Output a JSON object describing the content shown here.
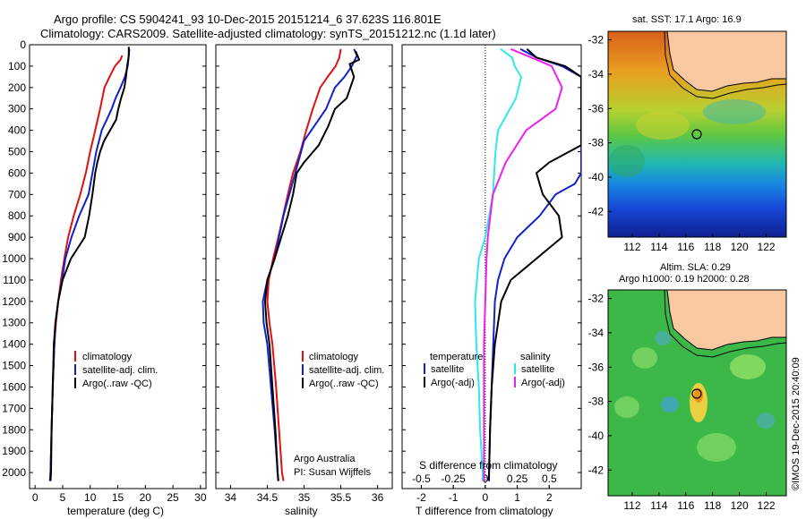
{
  "title_line1": "Argo profile: CS 5904241_93 10-Dec-2015 20151214_6 37.623S 116.801E",
  "title_line2": "Climatology: CARS2009. Satellite-adjusted climatology: synTS_20151212.nc (1.1d later)",
  "colors": {
    "climatology": "#e01010",
    "satellite": "#1020d0",
    "argo": "#000000",
    "cyan": "#30e8e8",
    "magenta": "#ee20ee"
  },
  "footer_left": "Argo Australia",
  "footer_pi": "PI: Susan Wijffels",
  "stamp": "©IMOS 19-Dec-2015 20:40:09",
  "chart_data": [
    {
      "type": "line",
      "xlabel": "temperature (deg C)",
      "xlim": [
        -1,
        31
      ],
      "ylim": [
        2075,
        0
      ],
      "xticks": [
        0,
        5,
        10,
        15,
        20,
        25,
        30
      ],
      "yticks": [
        0,
        100,
        200,
        300,
        400,
        500,
        600,
        700,
        800,
        900,
        1000,
        1100,
        1200,
        1300,
        1400,
        1500,
        1600,
        1700,
        1800,
        1900,
        2000
      ],
      "legend": [
        "climatology",
        "satellite-adj. clim.",
        "Argo(..raw -QC)"
      ],
      "series": [
        {
          "name": "climatology",
          "color": "#e01010",
          "points": [
            [
              15.8,
              50
            ],
            [
              15.5,
              70
            ],
            [
              14.5,
              100
            ],
            [
              13.5,
              150
            ],
            [
              12.6,
              200
            ],
            [
              11.8,
              300
            ],
            [
              10.9,
              400
            ],
            [
              10,
              500
            ],
            [
              9.2,
              600
            ],
            [
              8.2,
              700
            ],
            [
              7,
              800
            ],
            [
              6,
              900
            ],
            [
              5.3,
              1000
            ],
            [
              4.7,
              1100
            ],
            [
              4.2,
              1200
            ],
            [
              3.8,
              1300
            ],
            [
              3.5,
              1400
            ],
            [
              3.2,
              1600
            ],
            [
              3,
              1800
            ],
            [
              2.8,
              2000
            ],
            [
              2.7,
              2040
            ]
          ]
        },
        {
          "name": "satellite-adj. clim.",
          "color": "#1020d0",
          "points": [
            [
              17.1,
              20
            ],
            [
              17,
              50
            ],
            [
              16.8,
              100
            ],
            [
              16.3,
              150
            ],
            [
              15.5,
              200
            ],
            [
              14.6,
              250
            ],
            [
              13.9,
              300
            ],
            [
              13,
              350
            ],
            [
              12.1,
              400
            ],
            [
              11.1,
              500
            ],
            [
              10.4,
              600
            ],
            [
              9.7,
              700
            ],
            [
              8,
              800
            ],
            [
              6.6,
              900
            ],
            [
              5.5,
              1000
            ],
            [
              4.9,
              1100
            ],
            [
              4.2,
              1200
            ],
            [
              3.7,
              1300
            ],
            [
              3.5,
              1400
            ],
            [
              3.2,
              1600
            ],
            [
              3,
              1800
            ],
            [
              2.8,
              2000
            ],
            [
              2.7,
              2040
            ]
          ]
        },
        {
          "name": "Argo(..raw -QC)",
          "color": "#000000",
          "points": [
            [
              17,
              10
            ],
            [
              17,
              50
            ],
            [
              16.7,
              100
            ],
            [
              16.5,
              150
            ],
            [
              16.2,
              200
            ],
            [
              15.6,
              250
            ],
            [
              15.1,
              300
            ],
            [
              14.7,
              350
            ],
            [
              13.6,
              400
            ],
            [
              12.5,
              450
            ],
            [
              11.8,
              500
            ],
            [
              11.3,
              550
            ],
            [
              10.9,
              600
            ],
            [
              10.4,
              700
            ],
            [
              9.8,
              800
            ],
            [
              9,
              900
            ],
            [
              6.5,
              1000
            ],
            [
              5,
              1100
            ],
            [
              4.2,
              1200
            ],
            [
              3.7,
              1300
            ],
            [
              3.4,
              1400
            ],
            [
              3.2,
              1600
            ],
            [
              3,
              1800
            ],
            [
              2.9,
              2000
            ],
            [
              2.8,
              2040
            ]
          ]
        }
      ]
    },
    {
      "type": "line",
      "xlabel": "salinity",
      "xlim": [
        33.8,
        36.2
      ],
      "ylim": [
        2075,
        0
      ],
      "xticks": [
        34,
        34.5,
        35,
        35.5,
        36
      ],
      "legend": [
        "climatology",
        "satellite-adj. clim.",
        "Argo(..raw -QC)"
      ],
      "series": [
        {
          "name": "climatology",
          "color": "#e01010",
          "points": [
            [
              35.5,
              20
            ],
            [
              35.48,
              60
            ],
            [
              35.43,
              100
            ],
            [
              35.32,
              150
            ],
            [
              35.22,
              200
            ],
            [
              35.12,
              300
            ],
            [
              35.03,
              400
            ],
            [
              34.95,
              500
            ],
            [
              34.85,
              600
            ],
            [
              34.78,
              700
            ],
            [
              34.65,
              900
            ],
            [
              34.58,
              1000
            ],
            [
              34.52,
              1100
            ],
            [
              34.5,
              1200
            ],
            [
              34.53,
              1300
            ],
            [
              34.57,
              1400
            ],
            [
              34.62,
              1600
            ],
            [
              34.66,
              1800
            ],
            [
              34.7,
              2000
            ],
            [
              34.72,
              2040
            ]
          ]
        },
        {
          "name": "satellite-adj. clim.",
          "color": "#1020d0",
          "points": [
            [
              35.68,
              20
            ],
            [
              35.72,
              50
            ],
            [
              35.65,
              100
            ],
            [
              35.55,
              150
            ],
            [
              35.42,
              200
            ],
            [
              35.3,
              300
            ],
            [
              35.1,
              400
            ],
            [
              35,
              450
            ],
            [
              34.88,
              600
            ],
            [
              34.72,
              800
            ],
            [
              34.6,
              1000
            ],
            [
              34.5,
              1100
            ],
            [
              34.44,
              1200
            ],
            [
              34.45,
              1300
            ],
            [
              34.5,
              1400
            ],
            [
              34.55,
              1600
            ],
            [
              34.6,
              1800
            ],
            [
              34.64,
              2000
            ],
            [
              34.65,
              2040
            ]
          ]
        },
        {
          "name": "Argo(..raw -QC)",
          "color": "#000000",
          "points": [
            [
              35.7,
              30
            ],
            [
              35.75,
              70
            ],
            [
              35.62,
              90
            ],
            [
              35.68,
              150
            ],
            [
              35.58,
              250
            ],
            [
              35.42,
              300
            ],
            [
              35.33,
              380
            ],
            [
              35.2,
              470
            ],
            [
              35,
              550
            ],
            [
              34.9,
              600
            ],
            [
              34.85,
              700
            ],
            [
              34.78,
              800
            ],
            [
              34.6,
              1000
            ],
            [
              34.5,
              1100
            ],
            [
              34.47,
              1200
            ],
            [
              34.49,
              1300
            ],
            [
              34.53,
              1400
            ],
            [
              34.57,
              1600
            ],
            [
              34.61,
              1800
            ],
            [
              34.64,
              2000
            ],
            [
              34.65,
              2040
            ]
          ]
        }
      ]
    },
    {
      "type": "line",
      "xlabel": "T difference from climatology",
      "xlabel2": "S difference from climatology",
      "xlim": [
        -2.6,
        3
      ],
      "ylim": [
        2075,
        0
      ],
      "xticks": [
        -2,
        -1,
        0,
        1,
        2
      ],
      "xticks2": [
        -0.5,
        -0.25,
        0,
        0.25,
        0.5
      ],
      "xlim2": [
        -0.65,
        0.75
      ],
      "legend_left_title": "temperature",
      "legend_right_title": "salinity",
      "legend_left": [
        "satellite",
        "Argo(-adj)"
      ],
      "legend_right": [
        "satellite",
        "Argo(-adj)"
      ],
      "series": [
        {
          "name": "temperature satellite",
          "color": "#1020d0",
          "points": [
            [
              1.1,
              20
            ],
            [
              1.6,
              60
            ],
            [
              2.4,
              100
            ],
            [
              3,
              150
            ],
            [
              3,
              600
            ],
            [
              2.8,
              650
            ],
            [
              2.2,
              700
            ],
            [
              1.7,
              800
            ],
            [
              1,
              900
            ],
            [
              0.6,
              1000
            ],
            [
              0.4,
              1100
            ],
            [
              0.3,
              1200
            ],
            [
              0.25,
              1400
            ],
            [
              0.2,
              1600
            ],
            [
              0.15,
              1800
            ],
            [
              0.12,
              2000
            ],
            [
              0.1,
              2040
            ]
          ]
        },
        {
          "name": "temperature Argo(-adj)",
          "color": "#000000",
          "points": [
            [
              1.3,
              20
            ],
            [
              1.6,
              60
            ],
            [
              2.5,
              100
            ],
            [
              3,
              150
            ],
            [
              3,
              470
            ],
            [
              2,
              550
            ],
            [
              1.6,
              600
            ],
            [
              1.8,
              700
            ],
            [
              2.3,
              800
            ],
            [
              2.4,
              900
            ],
            [
              1.6,
              1000
            ],
            [
              0.8,
              1100
            ],
            [
              0.5,
              1200
            ],
            [
              0.3,
              1400
            ],
            [
              0.2,
              1600
            ],
            [
              0.15,
              1800
            ],
            [
              0.12,
              2000
            ],
            [
              0.12,
              2040
            ]
          ]
        },
        {
          "name": "salinity satellite",
          "color": "#30e8e8",
          "points": [
            [
              0.12,
              20
            ],
            [
              0.21,
              60
            ],
            [
              0.23,
              100
            ],
            [
              0.28,
              150
            ],
            [
              0.24,
              250
            ],
            [
              0.1,
              400
            ],
            [
              0.08,
              500
            ],
            [
              0.06,
              700
            ],
            [
              0.0,
              900
            ],
            [
              -0.05,
              1000
            ],
            [
              -0.08,
              1200
            ],
            [
              -0.07,
              1400
            ],
            [
              -0.05,
              1600
            ],
            [
              -0.04,
              1800
            ],
            [
              -0.02,
              2000
            ],
            [
              -0.02,
              2040
            ]
          ]
        },
        {
          "name": "salinity Argo(-adj)",
          "color": "#ee20ee",
          "points": [
            [
              0.2,
              20
            ],
            [
              0.36,
              60
            ],
            [
              0.52,
              100
            ],
            [
              0.6,
              200
            ],
            [
              0.55,
              300
            ],
            [
              0.32,
              400
            ],
            [
              0.16,
              550
            ],
            [
              0.06,
              700
            ],
            [
              0.02,
              900
            ],
            [
              0.01,
              1000
            ],
            [
              0.0,
              1200
            ],
            [
              -0.01,
              1400
            ],
            [
              -0.01,
              1600
            ],
            [
              -0.01,
              1800
            ],
            [
              -0.01,
              2000
            ],
            [
              -0.01,
              2040
            ]
          ]
        }
      ]
    },
    {
      "type": "heatmap",
      "title": "sat. SST: 17.1  Argo: 16.9",
      "xlim": [
        110.2,
        123.5
      ],
      "ylim": [
        -43.5,
        -31.5
      ],
      "xticks": [
        112,
        114,
        116,
        118,
        120,
        122
      ],
      "yticks": [
        -32,
        -34,
        -36,
        -38,
        -40,
        -42
      ],
      "marker": {
        "lon": 116.8,
        "lat": -37.6
      }
    },
    {
      "type": "heatmap",
      "title_line1": "Altim. SLA: 0.29",
      "title_line2": "Argo h1000: 0.19 h2000: 0.28",
      "xlim": [
        110.2,
        123.5
      ],
      "ylim": [
        -43.5,
        -31.5
      ],
      "xticks": [
        112,
        114,
        116,
        118,
        120,
        122
      ],
      "yticks": [
        -32,
        -34,
        -36,
        -38,
        -40,
        -42
      ],
      "marker": {
        "lon": 116.8,
        "lat": -37.6
      }
    }
  ]
}
